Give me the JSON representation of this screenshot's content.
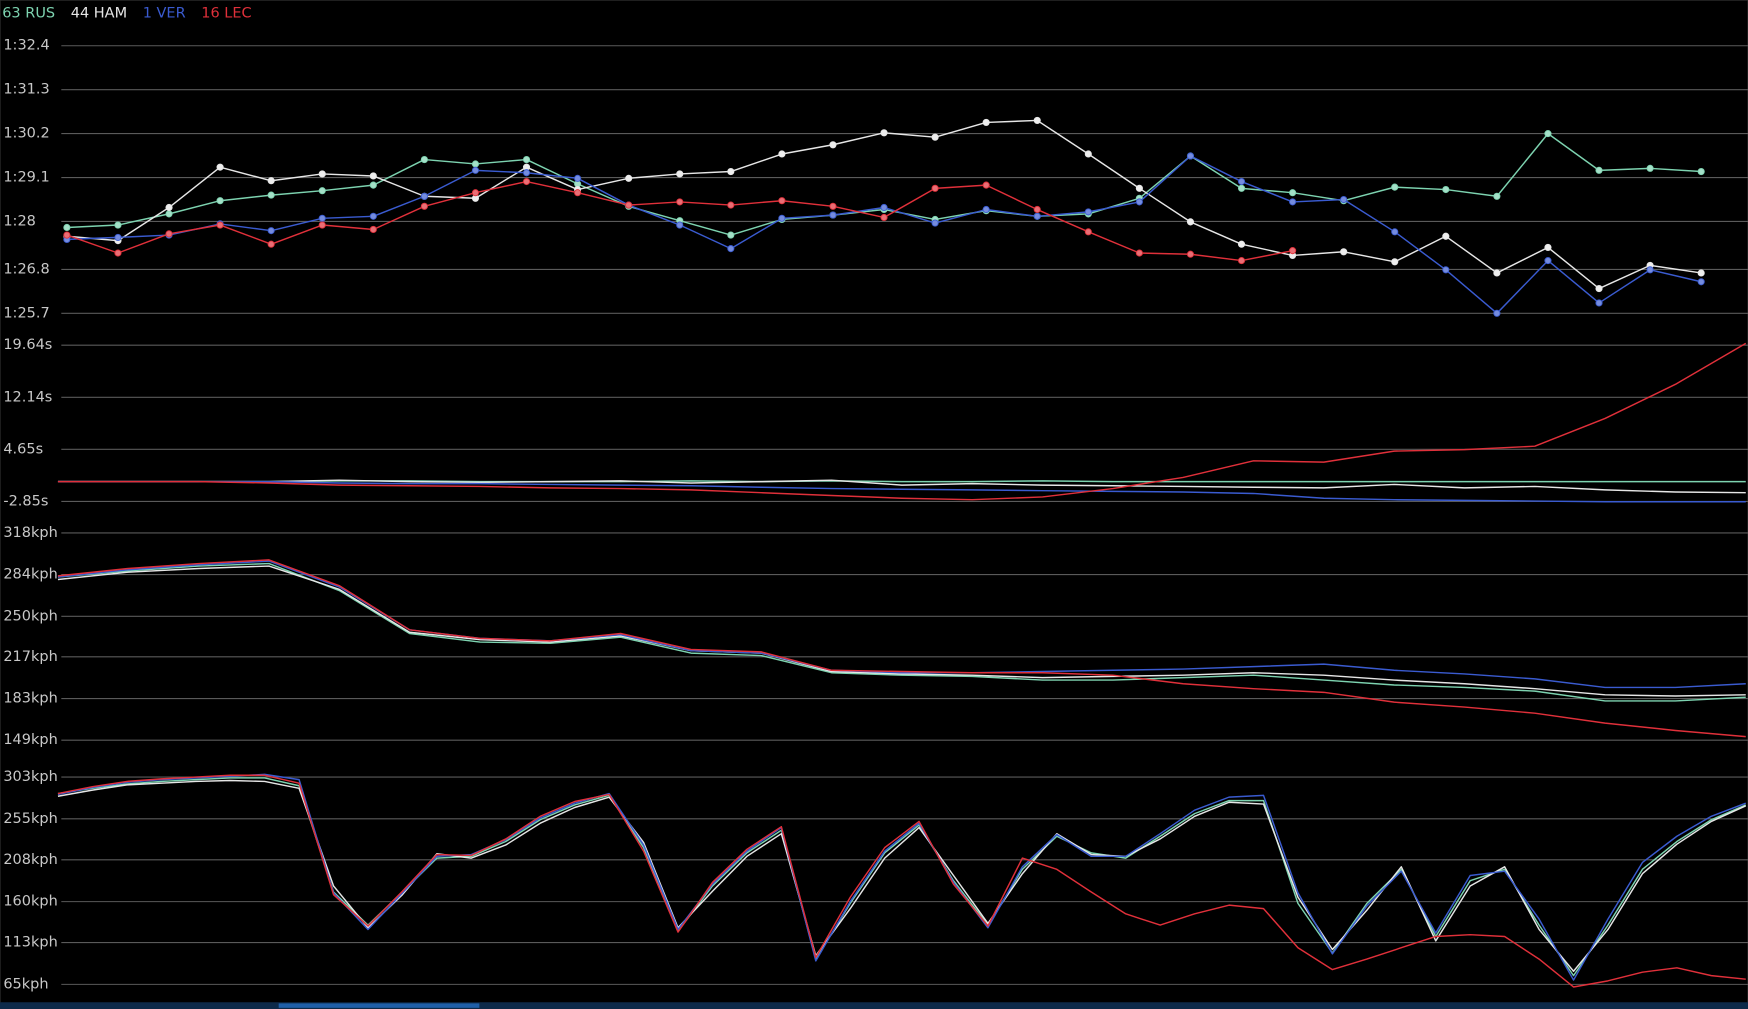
{
  "chart_data": [
    {
      "type": "line",
      "legend": "top-left",
      "grid": true,
      "markers": true,
      "ylim": [
        85.17,
        92.93
      ],
      "yticks": [
        {
          "value": 92.4,
          "label": "1:32.4"
        },
        {
          "value": 91.3,
          "label": "1:31.3"
        },
        {
          "value": 90.2,
          "label": "1:30.2"
        },
        {
          "value": 89.1,
          "label": "1:29.1"
        },
        {
          "value": 88,
          "label": "1:28"
        },
        {
          "value": 86.8,
          "label": "1:26.8"
        },
        {
          "value": 85.7,
          "label": "1:25.7"
        }
      ],
      "series": [
        {
          "name": "63 RUS",
          "color": "#7dd3b0",
          "values": [
            87.85,
            87.91,
            88.19,
            88.52,
            88.66,
            88.77,
            88.91,
            89.55,
            89.44,
            89.55,
            88.94,
            88.38,
            88.02,
            87.66,
            88.05,
            88.16,
            88.3,
            88.05,
            88.27,
            88.13,
            88.19,
            88.58,
            89.64,
            88.83,
            88.72,
            88.52,
            88.86,
            88.8,
            88.63,
            90.2,
            89.28,
            89.33,
            89.25
          ]
        },
        {
          "name": "44 HAM",
          "color": "#e6e6e6",
          "values": [
            87.63,
            87.52,
            88.35,
            89.36,
            89.02,
            89.19,
            89.14,
            88.63,
            88.58,
            89.36,
            88.8,
            89.08,
            89.19,
            89.25,
            89.69,
            89.92,
            90.22,
            90.11,
            90.48,
            90.53,
            89.69,
            88.83,
            87.99,
            87.43,
            87.15,
            87.24,
            86.99,
            87.63,
            86.71,
            87.35,
            86.32,
            86.9,
            86.71
          ]
        },
        {
          "name": "1 VER",
          "color": "#3a5bd0",
          "values": [
            87.55,
            87.6,
            87.66,
            87.94,
            87.77,
            88.08,
            88.13,
            88.63,
            89.28,
            89.22,
            89.08,
            88.41,
            87.91,
            87.32,
            88.08,
            88.16,
            88.35,
            87.96,
            88.3,
            88.13,
            88.24,
            88.49,
            89.64,
            89.0,
            88.49,
            88.55,
            87.74,
            86.79,
            85.7,
            87.02,
            85.96,
            86.79,
            86.49
          ]
        },
        {
          "name": "16 LEC",
          "color": "#e0303a",
          "values": [
            87.66,
            87.21,
            87.69,
            87.91,
            87.43,
            87.91,
            87.8,
            88.38,
            88.72,
            89.0,
            88.72,
            88.41,
            88.49,
            88.41,
            88.52,
            88.38,
            88.1,
            88.83,
            88.91,
            88.3,
            87.74,
            87.21,
            87.18,
            87.02,
            87.27,
            null,
            null,
            null,
            null,
            null,
            null,
            null,
            null
          ]
        }
      ]
    },
    {
      "type": "line",
      "grid": true,
      "ylim": [
        -4.98,
        21.18
      ],
      "yticks": [
        {
          "value": 19.64,
          "label": "19.64s"
        },
        {
          "value": 12.14,
          "label": "12.14s"
        },
        {
          "value": 4.65,
          "label": "4.65s"
        },
        {
          "value": -2.85,
          "label": "-2.85s"
        }
      ],
      "series": [
        {
          "color": "#7dd3b0",
          "values": [
            0,
            0,
            0,
            0,
            0.1,
            0.1,
            0,
            0,
            0,
            0.1,
            0,
            0.1,
            0,
            0,
            0.1,
            0,
            0,
            0,
            0,
            0,
            0,
            0,
            0,
            0,
            0
          ]
        },
        {
          "color": "#e6e6e6",
          "values": [
            0,
            0,
            0,
            0,
            0.2,
            0,
            -0.1,
            0,
            0.1,
            -0.2,
            0,
            0.2,
            -0.5,
            -0.3,
            -0.5,
            -0.6,
            -0.7,
            -0.8,
            -0.9,
            -0.4,
            -0.9,
            -0.7,
            -1.2,
            -1.5,
            -1.6
          ]
        },
        {
          "color": "#3a5bd0",
          "values": [
            0,
            0,
            0,
            0,
            -0.2,
            -0.3,
            -0.3,
            -0.4,
            -0.5,
            -0.6,
            -0.8,
            -1.0,
            -1.1,
            -1.2,
            -1.3,
            -1.4,
            -1.5,
            -1.7,
            -2.4,
            -2.6,
            -2.7,
            -2.8,
            -2.9,
            -2.9,
            -2.9
          ]
        },
        {
          "color": "#e0303a",
          "values": [
            0,
            0,
            0,
            -0.2,
            -0.5,
            -0.6,
            -0.7,
            -0.9,
            -1.0,
            -1.2,
            -1.6,
            -2.0,
            -2.4,
            -2.6,
            -2.2,
            -1.0,
            0.6,
            3.0,
            2.8,
            4.4,
            4.6,
            5.1,
            9.1,
            14.0,
            19.9
          ]
        }
      ]
    },
    {
      "type": "line",
      "grid": true,
      "ylim": [
        131.7,
        331.6
      ],
      "yticks": [
        {
          "value": 318,
          "label": "318kph"
        },
        {
          "value": 284,
          "label": "284kph"
        },
        {
          "value": 250,
          "label": "250kph"
        },
        {
          "value": 217,
          "label": "217kph"
        },
        {
          "value": 183,
          "label": "183kph"
        },
        {
          "value": 149,
          "label": "149kph"
        }
      ],
      "series": [
        {
          "color": "#7dd3b0",
          "values": [
            282,
            287,
            291,
            293,
            271,
            236,
            229,
            228,
            233,
            220,
            218,
            204,
            202,
            201,
            198,
            198,
            200,
            202,
            198,
            194,
            192,
            189,
            181,
            181,
            184
          ]
        },
        {
          "color": "#e6e6e6",
          "values": [
            280,
            286,
            289,
            291,
            272,
            237,
            231,
            229,
            234,
            222,
            220,
            205,
            203,
            202,
            200,
            201,
            202,
            204,
            202,
            198,
            195,
            191,
            186,
            185,
            186
          ]
        },
        {
          "color": "#3a5bd0",
          "values": [
            282,
            288,
            292,
            295,
            274,
            239,
            232,
            230,
            235,
            222,
            220,
            206,
            204,
            204,
            205,
            206,
            207,
            209,
            211,
            206,
            203,
            199,
            192,
            192,
            195
          ]
        },
        {
          "color": "#e0303a",
          "values": [
            283,
            289,
            293,
            296,
            275,
            239,
            232,
            230,
            236,
            223,
            221,
            206,
            205,
            204,
            204,
            202,
            195,
            191,
            188,
            180,
            176,
            171,
            163,
            157,
            152
          ]
        }
      ]
    },
    {
      "type": "line",
      "grid": true,
      "ylim": [
        36.8,
        320.9
      ],
      "yticks": [
        {
          "value": 303,
          "label": "303kph"
        },
        {
          "value": 255,
          "label": "255kph"
        },
        {
          "value": 208,
          "label": "208kph"
        },
        {
          "value": 160,
          "label": "160kph"
        },
        {
          "value": 113,
          "label": "113kph"
        },
        {
          "value": 65,
          "label": "65kph"
        }
      ],
      "series": [
        {
          "color": "#7dd3b0",
          "values": [
            284,
            290,
            295,
            298,
            300,
            302,
            302,
            293,
            171,
            133,
            171,
            210,
            212,
            229,
            254,
            271,
            282,
            222,
            126,
            178,
            216,
            242,
            94,
            158,
            216,
            248,
            184,
            133,
            197,
            235,
            216,
            210,
            235,
            261,
            276,
            276,
            158,
            101,
            158,
            197,
            120,
            184,
            197,
            133,
            75,
            133,
            197,
            229,
            254,
            271
          ]
        },
        {
          "color": "#e6e6e6",
          "values": [
            281,
            288,
            294,
            296,
            298,
            299,
            298,
            290,
            178,
            130,
            168,
            215,
            210,
            225,
            250,
            268,
            280,
            228,
            130,
            172,
            212,
            238,
            98,
            152,
            210,
            245,
            190,
            135,
            192,
            238,
            214,
            212,
            232,
            258,
            274,
            272,
            165,
            105,
            150,
            200,
            115,
            178,
            200,
            128,
            80,
            128,
            192,
            226,
            252,
            270
          ]
        },
        {
          "color": "#3a5bd0",
          "values": [
            283,
            291,
            297,
            300,
            302,
            304,
            306,
            300,
            170,
            128,
            170,
            212,
            214,
            231,
            256,
            273,
            284,
            225,
            128,
            180,
            218,
            245,
            92,
            160,
            218,
            250,
            182,
            130,
            200,
            237,
            212,
            212,
            238,
            265,
            280,
            282,
            170,
            100,
            155,
            195,
            124,
            190,
            195,
            140,
            70,
            140,
            205,
            235,
            258,
            273
          ]
        },
        {
          "color": "#e0303a",
          "values": [
            284,
            292,
            298,
            301,
            303,
            305,
            305,
            296,
            168,
            132,
            172,
            214,
            213,
            232,
            258,
            275,
            283,
            218,
            125,
            182,
            220,
            246,
            96,
            165,
            222,
            252,
            180,
            132,
            210,
            197,
            171,
            146,
            133,
            146,
            156,
            152,
            107,
            82,
            94,
            107,
            120,
            122,
            120,
            94,
            62,
            69,
            79,
            84,
            75,
            71
          ]
        }
      ]
    }
  ]
}
